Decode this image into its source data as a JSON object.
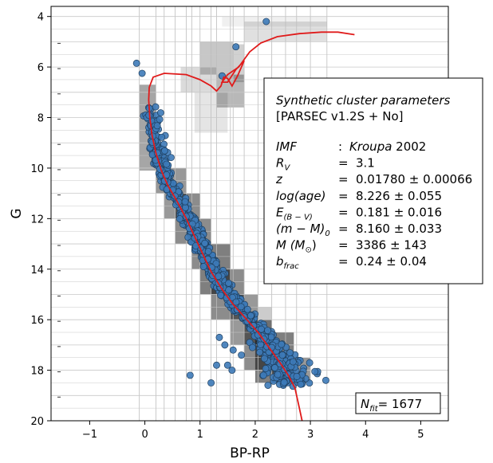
{
  "chart_data": {
    "type": "scatter",
    "title": "",
    "xlabel": "BP-RP",
    "ylabel": "G",
    "xlim": [
      -1.7,
      5.5
    ],
    "ylim": [
      20,
      3.6
    ],
    "y_inverted": true,
    "xticks": [
      -1,
      0,
      1,
      2,
      3,
      4,
      5
    ],
    "yticks": [
      4,
      6,
      8,
      10,
      12,
      14,
      16,
      18,
      20
    ],
    "grid": "binned cells",
    "point_color": "#3d7ab8",
    "isochrone_color": "#e01b1b",
    "annotation": {
      "heading1": "Synthetic cluster parameters",
      "heading2": "[PARSEC v1.2S + No]",
      "rows": [
        {
          "sym": "IMF",
          "sub": "",
          "rest": "",
          "eq": ": ",
          "val": "Kroupa 2002",
          "italic_val": true,
          "suffix": " 2002",
          "val_main": "Kroupa"
        },
        {
          "sym": "R",
          "sub": "V",
          "rest": "",
          "eq": "=",
          "val": "3.1"
        },
        {
          "sym": "z",
          "sub": "",
          "rest": "",
          "eq": "=",
          "val": "0.01780 ± 0.00066"
        },
        {
          "sym": "log(age)",
          "sub": "",
          "rest": "",
          "eq": "=",
          "val": "8.226 ± 0.055"
        },
        {
          "sym": "E",
          "sub": "(B − V)",
          "rest": "",
          "eq": "=",
          "val": "0.181 ± 0.016"
        },
        {
          "sym": "(m − M)",
          "sub": "0",
          "rest": "",
          "eq": "=",
          "val": "8.160 ± 0.033"
        },
        {
          "sym": "M (M",
          "sub": "⊙",
          "rest": ")",
          "eq": "=",
          "val": "3386 ± 143"
        },
        {
          "sym": "b",
          "sub": "frac",
          "rest": "",
          "eq": "=",
          "val": "0.24 ± 0.04"
        }
      ]
    },
    "nfit_label": "N",
    "nfit_sub": "fit",
    "nfit_value": "= 1677",
    "cells": [
      {
        "x0": -0.1,
        "x1": 0.2,
        "y0": 6.7,
        "y1": 10.1,
        "a": 0.35
      },
      {
        "x0": 0.2,
        "x1": 0.35,
        "y0": 9.3,
        "y1": 11.0,
        "a": 0.4
      },
      {
        "x0": 0.35,
        "x1": 0.75,
        "y0": 10.0,
        "y1": 12.0,
        "a": 0.4
      },
      {
        "x0": 0.55,
        "x1": 1.0,
        "y0": 11.0,
        "y1": 13.0,
        "a": 0.45
      },
      {
        "x0": 0.85,
        "x1": 1.2,
        "y0": 12.0,
        "y1": 14.0,
        "a": 0.45
      },
      {
        "x0": 1.0,
        "x1": 1.55,
        "y0": 13.0,
        "y1": 15.0,
        "a": 0.5
      },
      {
        "x0": 1.2,
        "x1": 1.8,
        "y0": 14.0,
        "y1": 16.0,
        "a": 0.45
      },
      {
        "x0": 1.55,
        "x1": 2.05,
        "y0": 15.0,
        "y1": 17.0,
        "a": 0.4
      },
      {
        "x0": 1.8,
        "x1": 2.3,
        "y0": 16.0,
        "y1": 18.0,
        "a": 0.45
      },
      {
        "x0": 2.0,
        "x1": 2.7,
        "y0": 16.5,
        "y1": 18.5,
        "a": 0.5
      },
      {
        "x0": 2.3,
        "x1": 3.0,
        "y0": 17.5,
        "y1": 18.5,
        "a": 0.4
      },
      {
        "x0": 2.05,
        "x1": 2.3,
        "y0": 15.5,
        "y1": 16.5,
        "a": 0.2
      },
      {
        "x0": 1.0,
        "x1": 1.6,
        "y0": 5.0,
        "y1": 6.3,
        "a": 0.22
      },
      {
        "x0": 1.3,
        "x1": 1.8,
        "y0": 6.3,
        "y1": 7.6,
        "a": 0.28
      },
      {
        "x0": 0.65,
        "x1": 1.3,
        "y0": 6.0,
        "y1": 7.0,
        "a": 0.14
      },
      {
        "x0": 0.9,
        "x1": 1.5,
        "y0": 7.0,
        "y1": 8.6,
        "a": 0.1
      },
      {
        "x0": 1.6,
        "x1": 1.8,
        "y0": 5.1,
        "y1": 6.6,
        "a": 0.18
      },
      {
        "x0": 1.8,
        "x1": 3.3,
        "y0": 4.2,
        "y1": 5.0,
        "a": 0.12
      },
      {
        "x0": 1.4,
        "x1": 3.3,
        "y0": 4.0,
        "y1": 4.4,
        "a": 0.06
      }
    ],
    "isochrone": [
      [
        2.85,
        20.0
      ],
      [
        2.78,
        19.3
      ],
      [
        2.72,
        18.7
      ],
      [
        2.6,
        18.2
      ],
      [
        2.45,
        17.7
      ],
      [
        2.25,
        17.1
      ],
      [
        2.05,
        16.5
      ],
      [
        1.85,
        16.0
      ],
      [
        1.6,
        15.4
      ],
      [
        1.4,
        14.8
      ],
      [
        1.2,
        14.1
      ],
      [
        1.05,
        13.4
      ],
      [
        0.9,
        12.7
      ],
      [
        0.75,
        12.0
      ],
      [
        0.58,
        11.3
      ],
      [
        0.42,
        10.7
      ],
      [
        0.3,
        10.1
      ],
      [
        0.2,
        9.4
      ],
      [
        0.13,
        8.7
      ],
      [
        0.09,
        8.0
      ],
      [
        0.07,
        7.3
      ],
      [
        0.08,
        6.8
      ],
      [
        0.15,
        6.4
      ],
      [
        0.35,
        6.25
      ],
      [
        0.75,
        6.3
      ],
      [
        1.0,
        6.5
      ],
      [
        1.2,
        6.75
      ],
      [
        1.3,
        6.95
      ],
      [
        1.38,
        6.75
      ],
      [
        1.43,
        6.4
      ],
      [
        1.5,
        6.45
      ],
      [
        1.58,
        6.75
      ],
      [
        1.68,
        6.35
      ],
      [
        1.8,
        5.75
      ],
      [
        1.65,
        6.1
      ],
      [
        1.5,
        6.6
      ],
      [
        1.4,
        6.6
      ],
      [
        1.5,
        6.3
      ],
      [
        1.7,
        6.0
      ],
      [
        1.9,
        5.4
      ],
      [
        2.1,
        5.05
      ],
      [
        2.4,
        4.8
      ],
      [
        2.8,
        4.68
      ],
      [
        3.2,
        4.62
      ],
      [
        3.5,
        4.62
      ],
      [
        3.8,
        4.72
      ]
    ],
    "outliers": [
      [
        2.2,
        4.2
      ],
      [
        1.65,
        5.2
      ],
      [
        -0.15,
        5.85
      ],
      [
        -0.05,
        6.25
      ],
      [
        1.4,
        6.35
      ],
      [
        1.35,
        16.7
      ],
      [
        1.45,
        17.0
      ],
      [
        1.6,
        17.2
      ],
      [
        1.5,
        17.8
      ],
      [
        1.3,
        17.8
      ],
      [
        0.82,
        18.2
      ],
      [
        1.2,
        18.5
      ],
      [
        1.9,
        16.9
      ],
      [
        1.75,
        17.4
      ],
      [
        2.05,
        16.6
      ],
      [
        1.58,
        18.0
      ],
      [
        2.15,
        18.2
      ],
      [
        3.28,
        18.4
      ],
      [
        1.95,
        17.1
      ]
    ],
    "dense_points": 900
  }
}
